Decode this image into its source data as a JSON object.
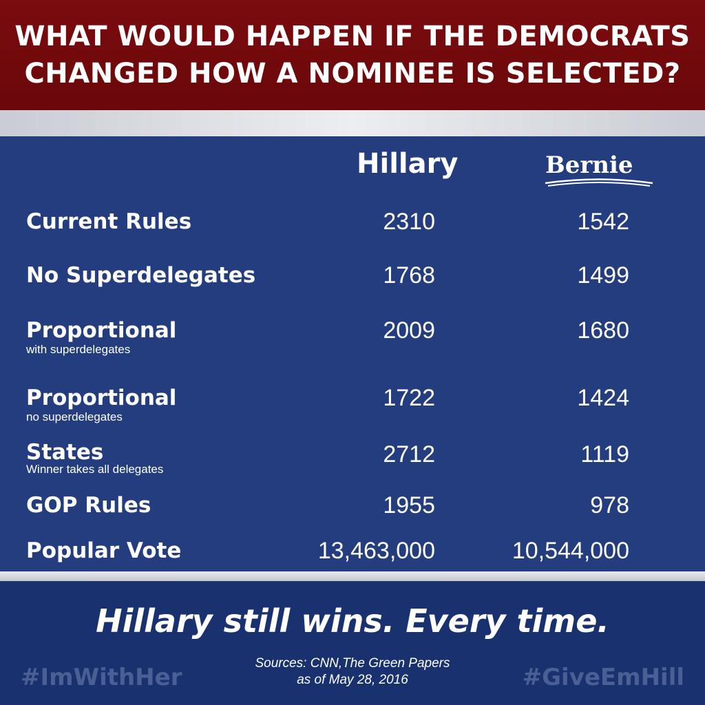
{
  "header": {
    "line1": "WHAT WOULD HAPPEN IF THE DEMOCRATS",
    "line2": "CHANGED HOW A NOMINEE IS SELECTED?"
  },
  "columns": {
    "hillary": "Hillary",
    "bernie": "Bernie"
  },
  "rows": [
    {
      "label": "Current Rules",
      "sub": "",
      "hillary": "2310",
      "bernie": "1542"
    },
    {
      "label": "No Superdelegates",
      "sub": "",
      "hillary": "1768",
      "bernie": "1499"
    },
    {
      "label": "Proportional",
      "sub": "with superdelegates",
      "hillary": "2009",
      "bernie": "1680"
    },
    {
      "label": "Proportional",
      "sub": "no superdelegates",
      "hillary": "1722",
      "bernie": "1424"
    },
    {
      "label": "States",
      "sub": "Winner takes all delegates",
      "hillary": "2712",
      "bernie": "1119"
    },
    {
      "label": "GOP Rules",
      "sub": "",
      "hillary": "1955",
      "bernie": "978"
    },
    {
      "label": "Popular Vote",
      "sub": "",
      "hillary": "13,463,000",
      "bernie": "10,544,000"
    }
  ],
  "footer": {
    "tagline": "Hillary still wins. Every time.",
    "sources_line1": "Sources: CNN,The Green Papers",
    "sources_line2": "as of May 28, 2016",
    "hashtag_left": "#ImWithHer",
    "hashtag_right": "#GiveEmHill"
  }
}
